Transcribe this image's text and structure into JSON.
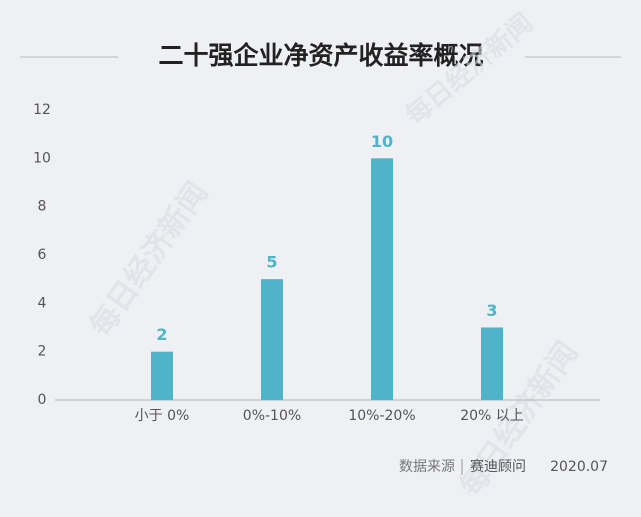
{
  "chart_data": {
    "type": "bar",
    "title": "二十强企业净资产收益率概况",
    "categories": [
      "小于 0%",
      "0%-10%",
      "10%-20%",
      "20% 以上"
    ],
    "values": [
      2,
      5,
      10,
      3
    ],
    "color": "#4fb3c9",
    "ylim": [
      0,
      12
    ],
    "yticks": [
      0,
      2,
      4,
      6,
      8,
      10,
      12
    ],
    "grid": false,
    "source_label": "数据来源",
    "source": "赛迪顾问",
    "date": "2020.07",
    "watermark": "每日经济新闻"
  }
}
